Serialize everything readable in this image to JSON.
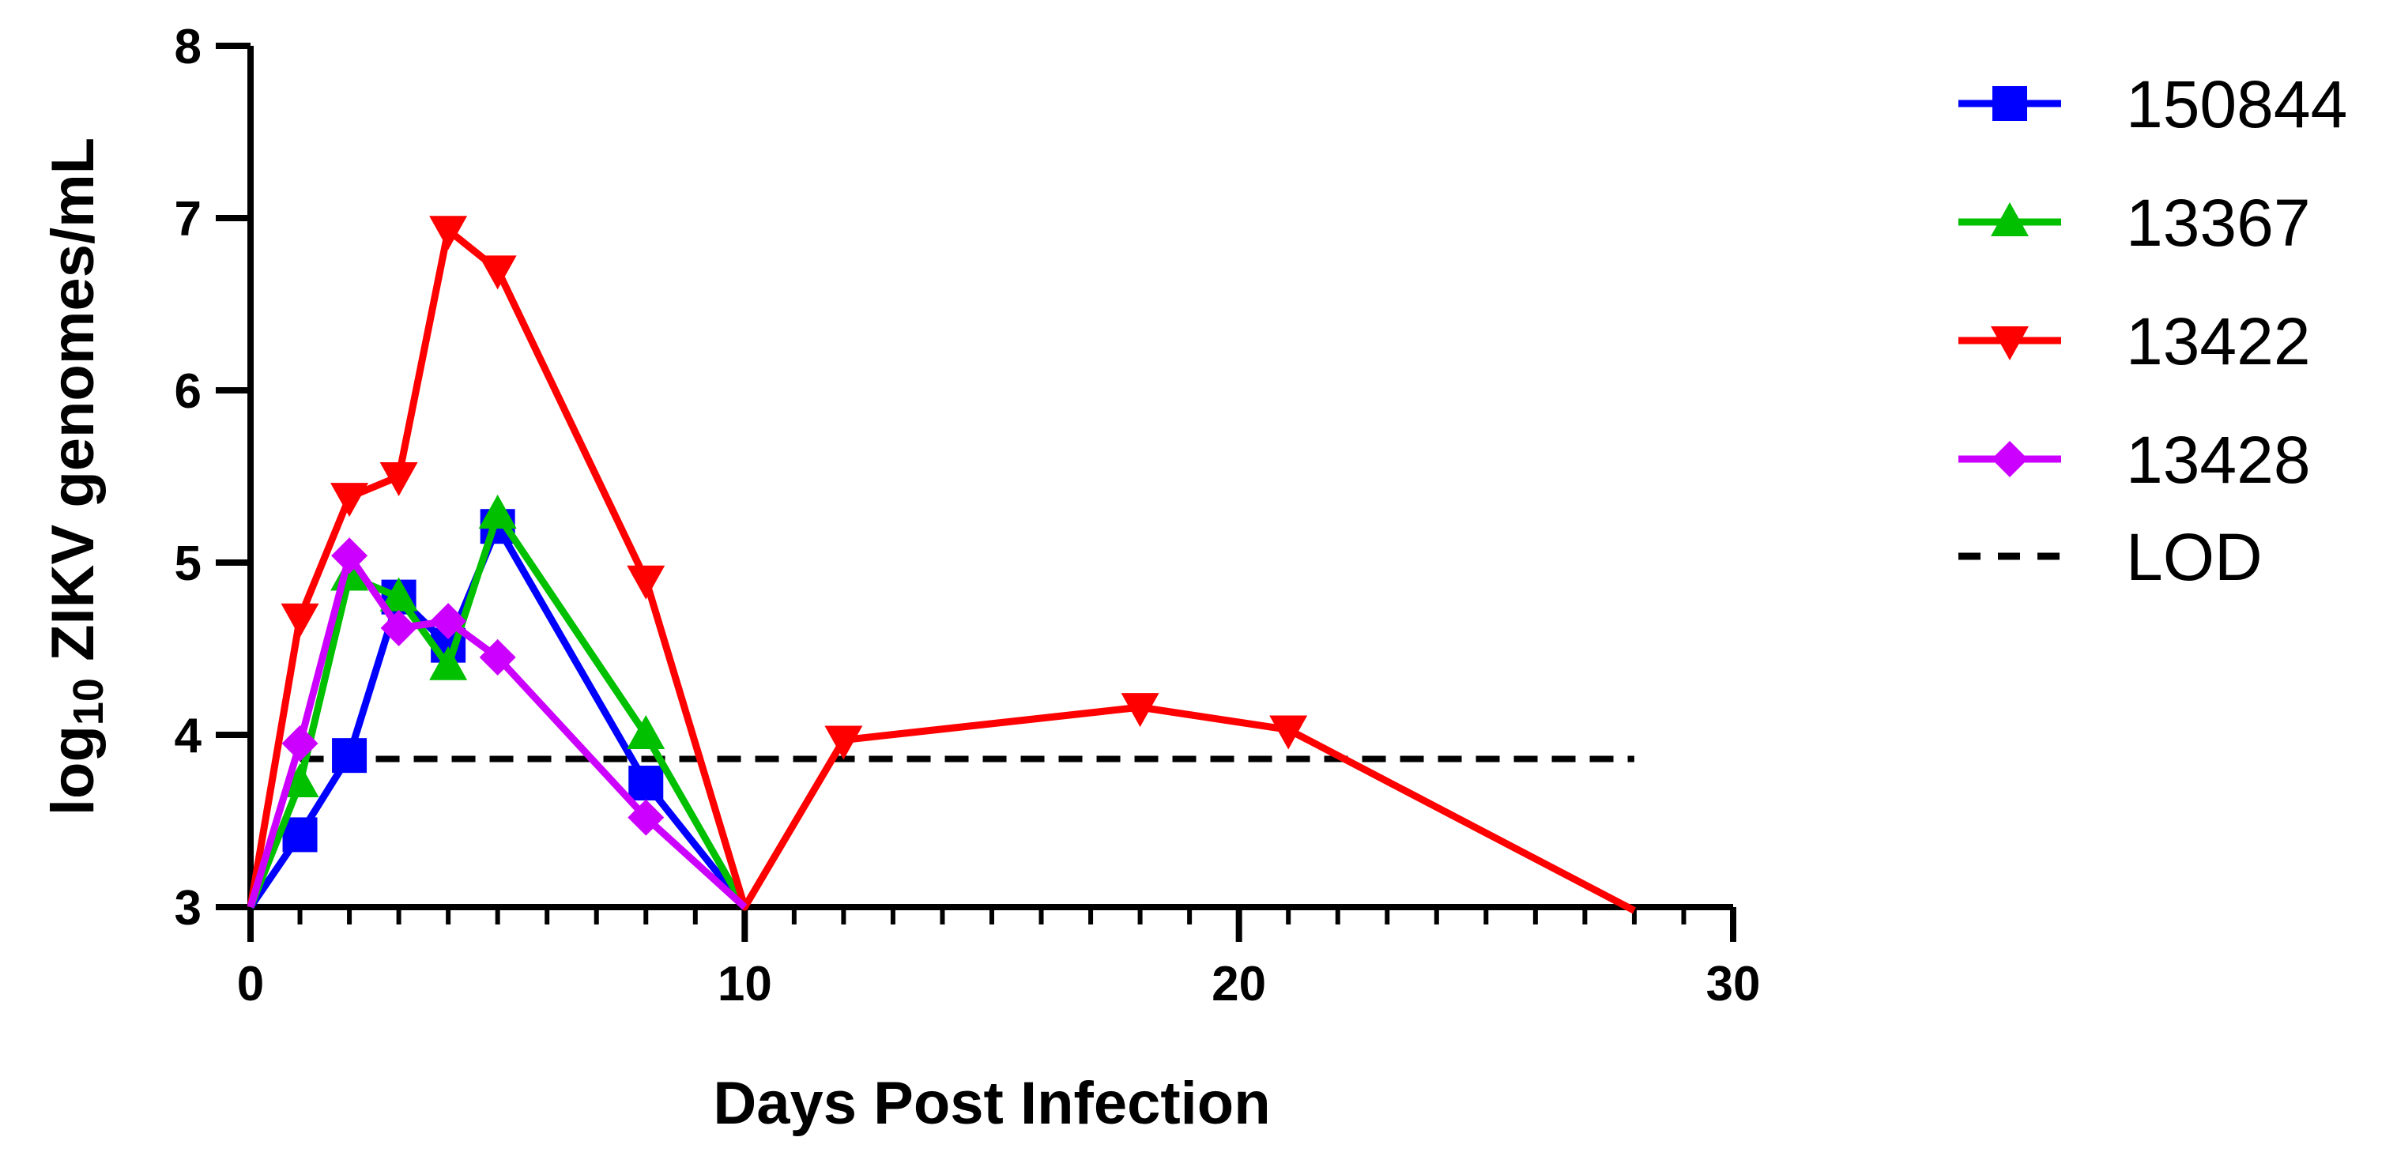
{
  "chart_data": {
    "type": "line",
    "xlabel": "Days Post Infection",
    "ylabel_prefix": "log",
    "ylabel_subscript": "10",
    "ylabel_suffix": " ZIKV genomes/mL",
    "xlim": [
      0,
      30
    ],
    "ylim": [
      3,
      8
    ],
    "x_ticks": [
      0,
      10,
      20,
      30
    ],
    "x_tick_labels": [
      "0",
      "10",
      "20",
      "30"
    ],
    "y_ticks": [
      3,
      4,
      5,
      6,
      7,
      8
    ],
    "y_tick_labels": [
      "3",
      "4",
      "5",
      "6",
      "7",
      "8"
    ],
    "x_minor_step": 1,
    "grid": false,
    "legend_position": "right",
    "series": [
      {
        "name": "150844",
        "color": "#0000ff",
        "marker": "square",
        "x": [
          0,
          1,
          2,
          3,
          4,
          5,
          8,
          10
        ],
        "y": [
          3.0,
          3.42,
          3.88,
          4.8,
          4.52,
          5.21,
          3.72,
          3.0
        ]
      },
      {
        "name": "13367",
        "color": "#00c000",
        "marker": "triangle-up",
        "x": [
          0,
          1,
          2,
          3,
          4,
          5,
          8,
          10
        ],
        "y": [
          3.0,
          3.72,
          4.92,
          4.8,
          4.4,
          5.28,
          4.0,
          3.0
        ]
      },
      {
        "name": "13422",
        "color": "#ff0000",
        "marker": "triangle-down",
        "x": [
          0,
          1,
          2,
          3,
          4,
          5,
          8,
          10,
          12,
          18,
          21,
          28
        ],
        "y": [
          3.0,
          4.68,
          5.38,
          5.5,
          6.93,
          6.7,
          4.9,
          3.0,
          3.97,
          4.16,
          4.03,
          2.98
        ]
      },
      {
        "name": "13428",
        "color": "#cc00ff",
        "marker": "diamond",
        "x": [
          0,
          1,
          2,
          3,
          4,
          5,
          8,
          10
        ],
        "y": [
          3.0,
          3.95,
          5.04,
          4.62,
          4.66,
          4.45,
          3.52,
          3.0
        ]
      }
    ],
    "reference_lines": [
      {
        "name": "LOD",
        "y": 3.86,
        "x_range": [
          1,
          28
        ],
        "color": "#000000",
        "style": "dashed"
      }
    ]
  }
}
